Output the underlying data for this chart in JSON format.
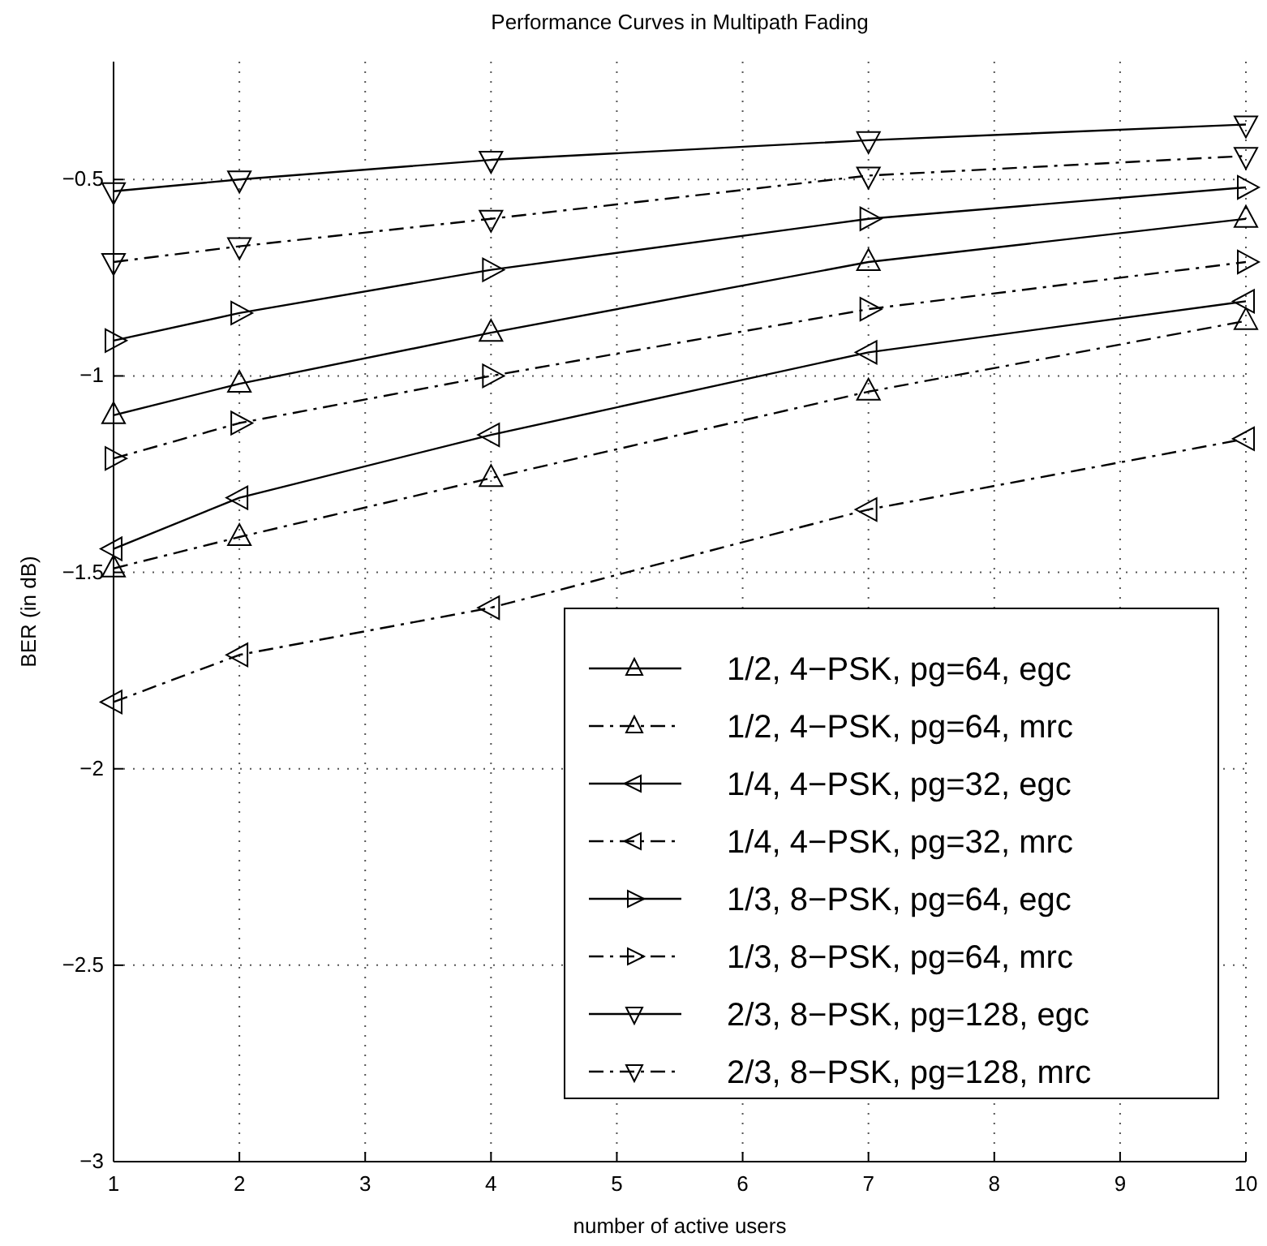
{
  "chart_data": {
    "type": "line",
    "title": "Performance Curves in Multipath Fading",
    "xlabel": "number of active users",
    "ylabel": "BER (in dB)",
    "x": [
      1,
      2,
      4,
      7,
      10
    ],
    "xlim": [
      1,
      10
    ],
    "xticks": [
      1,
      2,
      3,
      4,
      5,
      6,
      7,
      8,
      9,
      10
    ],
    "ylim": [
      -3,
      -0.2
    ],
    "yticks": [
      -3,
      -2.5,
      -2,
      -1.5,
      -1,
      -0.5
    ],
    "grid": true,
    "legend": "bottom right",
    "series": [
      {
        "name": "1/2, 4−PSK, pg=64, egc",
        "color": "#000000",
        "marker": "triangle-up",
        "line_style": "solid",
        "values": [
          -1.1,
          -1.02,
          -0.89,
          -0.71,
          -0.6
        ]
      },
      {
        "name": "1/2, 4−PSK, pg=64, mrc",
        "color": "#000000",
        "marker": "triangle-up",
        "line_style": "dashdot",
        "values": [
          -1.49,
          -1.41,
          -1.26,
          -1.04,
          -0.86
        ]
      },
      {
        "name": "1/4, 4−PSK, pg=32, egc",
        "color": "#000000",
        "marker": "triangle-left",
        "line_style": "solid",
        "values": [
          -1.44,
          -1.31,
          -1.15,
          -0.94,
          -0.81
        ]
      },
      {
        "name": "1/4, 4−PSK, pg=32, mrc",
        "color": "#000000",
        "marker": "triangle-left",
        "line_style": "dashdot",
        "values": [
          -1.83,
          -1.71,
          -1.59,
          -1.34,
          -1.16
        ]
      },
      {
        "name": "1/3, 8−PSK, pg=64, egc",
        "color": "#000000",
        "marker": "triangle-right",
        "line_style": "solid",
        "values": [
          -0.91,
          -0.84,
          -0.73,
          -0.6,
          -0.52
        ]
      },
      {
        "name": "1/3, 8−PSK, pg=64, mrc",
        "color": "#000000",
        "marker": "triangle-right",
        "line_style": "dashdot",
        "values": [
          -1.21,
          -1.12,
          -1.0,
          -0.83,
          -0.71
        ]
      },
      {
        "name": "2/3, 8−PSK, pg=128, egc",
        "color": "#000000",
        "marker": "triangle-down",
        "line_style": "solid",
        "values": [
          -0.53,
          -0.5,
          -0.45,
          -0.4,
          -0.36
        ]
      },
      {
        "name": "2/3, 8−PSK, pg=128, mrc",
        "color": "#000000",
        "marker": "triangle-down",
        "line_style": "dashdot",
        "values": [
          -0.71,
          -0.67,
          -0.6,
          -0.49,
          -0.44
        ]
      }
    ]
  }
}
